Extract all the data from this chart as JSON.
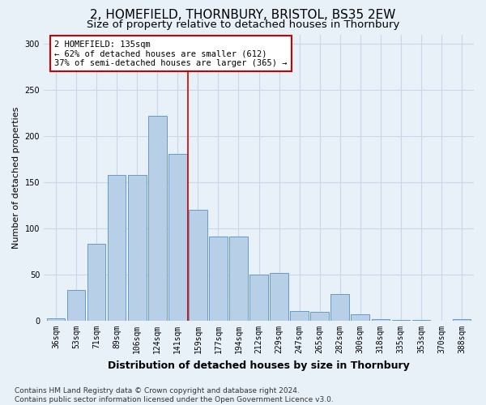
{
  "title": "2, HOMEFIELD, THORNBURY, BRISTOL, BS35 2EW",
  "subtitle": "Size of property relative to detached houses in Thornbury",
  "xlabel": "Distribution of detached houses by size in Thornbury",
  "ylabel": "Number of detached properties",
  "categories": [
    "36sqm",
    "53sqm",
    "71sqm",
    "89sqm",
    "106sqm",
    "124sqm",
    "141sqm",
    "159sqm",
    "177sqm",
    "194sqm",
    "212sqm",
    "229sqm",
    "247sqm",
    "265sqm",
    "282sqm",
    "300sqm",
    "318sqm",
    "335sqm",
    "353sqm",
    "370sqm",
    "388sqm"
  ],
  "values": [
    3,
    33,
    83,
    158,
    158,
    222,
    181,
    120,
    91,
    91,
    50,
    52,
    11,
    10,
    29,
    7,
    2,
    1,
    1,
    0,
    2
  ],
  "bar_color": "#b8cfe8",
  "bar_edge_color": "#6699cc",
  "grid_color": "#c8d8ea",
  "bg_color": "#e8f0f8",
  "vline_x": 6.5,
  "vline_color": "#cc0000",
  "annotation_text": "2 HOMEFIELD: 135sqm\n← 62% of detached houses are smaller (612)\n37% of semi-detached houses are larger (365) →",
  "annotation_box_color": "#ffffff",
  "annotation_box_edge": "#cc0000",
  "footer_text": "Contains HM Land Registry data © Crown copyright and database right 2024.\nContains public sector information licensed under the Open Government Licence v3.0.",
  "ylim": [
    0,
    310
  ],
  "title_fontsize": 11,
  "subtitle_fontsize": 9.5,
  "xlabel_fontsize": 9,
  "ylabel_fontsize": 8,
  "tick_fontsize": 7,
  "footer_fontsize": 6.5,
  "ann_fontsize": 7.5
}
